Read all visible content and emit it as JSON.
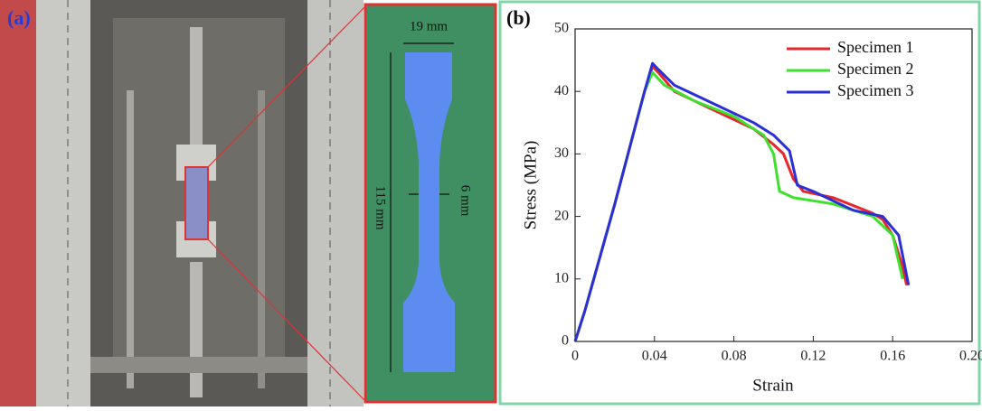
{
  "panel_a": {
    "label": "(a)",
    "width_label": "19 mm",
    "length_label": "115 mm",
    "neck_label": "6 mm"
  },
  "chart_data": {
    "type": "line",
    "panel_label": "(b)",
    "x_label": "Strain",
    "y_label": "Stress (MPa)",
    "xlim": [
      0,
      0.2
    ],
    "xticks": [
      0,
      0.04,
      0.08,
      0.12,
      0.16,
      {
        "value": 0.2,
        "label": "0.20"
      }
    ],
    "ylim": [
      0,
      50
    ],
    "yticks": [
      0,
      10,
      20,
      30,
      40,
      50
    ],
    "legend": "upper right",
    "series": [
      {
        "name": "Specimen 1",
        "color": "#e8262b",
        "x": [
          0,
          0.005,
          0.02,
          0.035,
          0.039,
          0.042,
          0.05,
          0.07,
          0.09,
          0.1,
          0.105,
          0.11,
          0.115,
          0.13,
          0.15,
          0.155,
          0.16,
          0.165,
          0.167
        ],
        "values": [
          0,
          5,
          22,
          40,
          44,
          43,
          40,
          37,
          34,
          31.5,
          30,
          26,
          24,
          23,
          20.5,
          19.5,
          17,
          12,
          9
        ]
      },
      {
        "name": "Specimen 2",
        "color": "#3ee02e",
        "x": [
          0,
          0.005,
          0.02,
          0.035,
          0.039,
          0.045,
          0.06,
          0.08,
          0.095,
          0.1,
          0.103,
          0.11,
          0.13,
          0.15,
          0.16,
          0.165
        ],
        "values": [
          0,
          5,
          22,
          40,
          43,
          41,
          38.5,
          36,
          33,
          30,
          24,
          23,
          22,
          20,
          17,
          10
        ]
      },
      {
        "name": "Specimen 3",
        "color": "#2a2fd6",
        "x": [
          0,
          0.005,
          0.02,
          0.035,
          0.039,
          0.042,
          0.05,
          0.07,
          0.09,
          0.1,
          0.108,
          0.112,
          0.12,
          0.14,
          0.155,
          0.163,
          0.168
        ],
        "values": [
          0,
          5,
          22,
          40,
          44.5,
          43.5,
          41,
          38,
          35,
          33,
          30.5,
          25,
          24,
          21,
          20,
          17,
          9
        ]
      }
    ]
  }
}
